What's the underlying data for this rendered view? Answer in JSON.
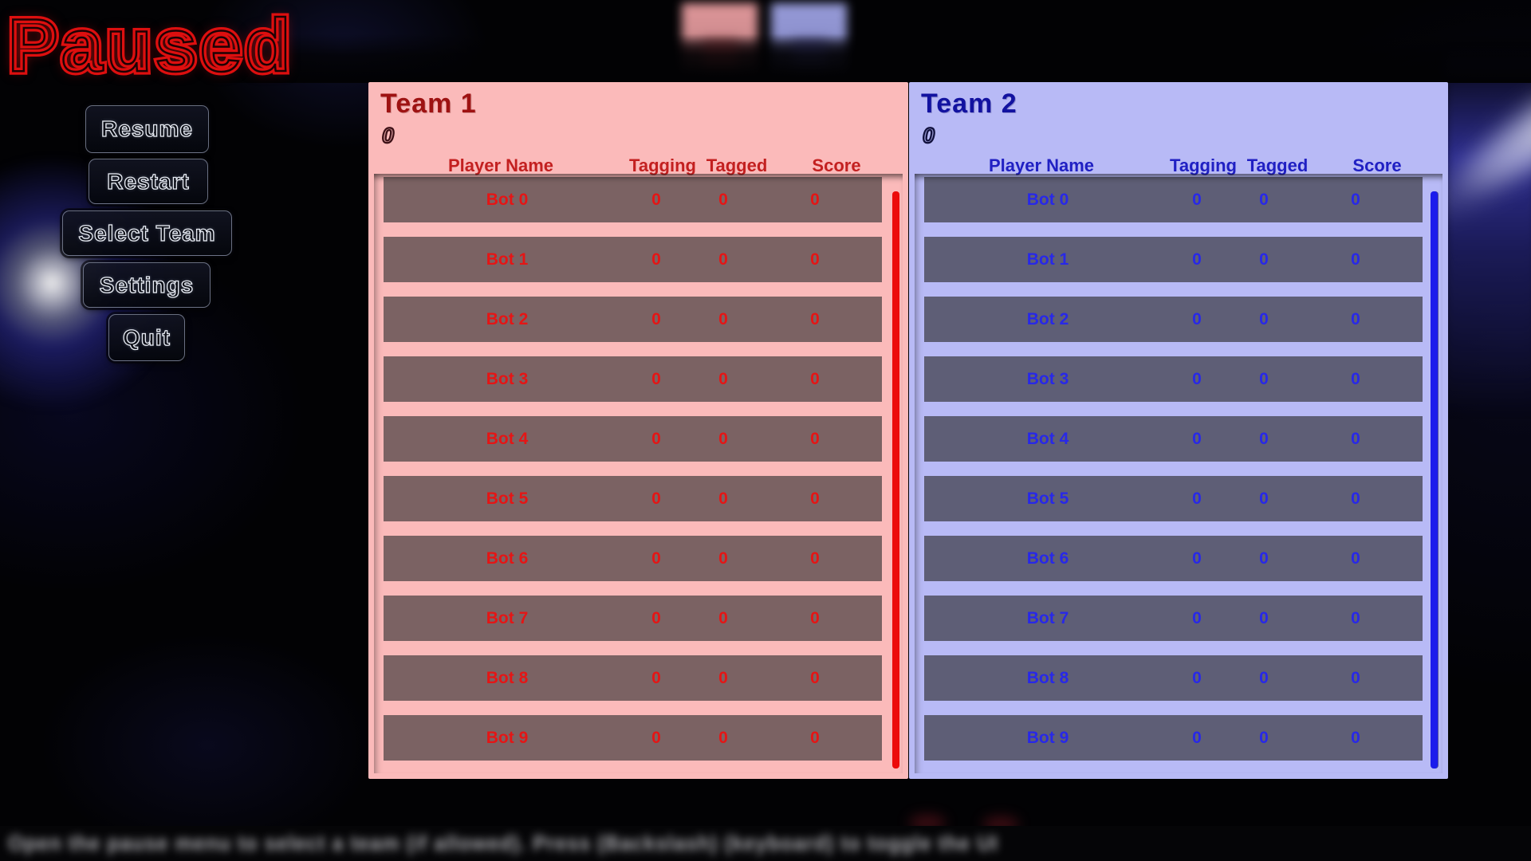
{
  "pause_title": "Paused",
  "menu": {
    "buttons": [
      {
        "id": "resume",
        "label": "Resume"
      },
      {
        "id": "restart",
        "label": "Restart"
      },
      {
        "id": "select_team",
        "label": "Select Team"
      },
      {
        "id": "settings",
        "label": "Settings"
      },
      {
        "id": "quit",
        "label": "Quit"
      }
    ]
  },
  "teams": [
    {
      "name": "Team 1",
      "score": "0",
      "columns": {
        "player": "Player Name",
        "tagging": "Tagging",
        "tagged": "Tagged",
        "score": "Score"
      },
      "players": [
        {
          "name": "Bot 0",
          "tagging": "0",
          "tagged": "0",
          "score": "0"
        },
        {
          "name": "Bot 1",
          "tagging": "0",
          "tagged": "0",
          "score": "0"
        },
        {
          "name": "Bot 2",
          "tagging": "0",
          "tagged": "0",
          "score": "0"
        },
        {
          "name": "Bot 3",
          "tagging": "0",
          "tagged": "0",
          "score": "0"
        },
        {
          "name": "Bot 4",
          "tagging": "0",
          "tagged": "0",
          "score": "0"
        },
        {
          "name": "Bot 5",
          "tagging": "0",
          "tagged": "0",
          "score": "0"
        },
        {
          "name": "Bot 6",
          "tagging": "0",
          "tagged": "0",
          "score": "0"
        },
        {
          "name": "Bot 7",
          "tagging": "0",
          "tagged": "0",
          "score": "0"
        },
        {
          "name": "Bot 8",
          "tagging": "0",
          "tagged": "0",
          "score": "0"
        },
        {
          "name": "Bot 9",
          "tagging": "0",
          "tagged": "0",
          "score": "0"
        }
      ]
    },
    {
      "name": "Team 2",
      "score": "0",
      "columns": {
        "player": "Player Name",
        "tagging": "Tagging",
        "tagged": "Tagged",
        "score": "Score"
      },
      "players": [
        {
          "name": "Bot 0",
          "tagging": "0",
          "tagged": "0",
          "score": "0"
        },
        {
          "name": "Bot 1",
          "tagging": "0",
          "tagged": "0",
          "score": "0"
        },
        {
          "name": "Bot 2",
          "tagging": "0",
          "tagged": "0",
          "score": "0"
        },
        {
          "name": "Bot 3",
          "tagging": "0",
          "tagged": "0",
          "score": "0"
        },
        {
          "name": "Bot 4",
          "tagging": "0",
          "tagged": "0",
          "score": "0"
        },
        {
          "name": "Bot 5",
          "tagging": "0",
          "tagged": "0",
          "score": "0"
        },
        {
          "name": "Bot 6",
          "tagging": "0",
          "tagged": "0",
          "score": "0"
        },
        {
          "name": "Bot 7",
          "tagging": "0",
          "tagged": "0",
          "score": "0"
        },
        {
          "name": "Bot 8",
          "tagging": "0",
          "tagged": "0",
          "score": "0"
        },
        {
          "name": "Bot 9",
          "tagging": "0",
          "tagged": "0",
          "score": "0"
        }
      ]
    }
  ],
  "bottom_hint": "Open the pause menu to select a team (if allowed). Press (Backslash) (keyboard) to toggle the UI",
  "colors": {
    "paused_red": "#dd0f0f",
    "team1_panel": "#fbbaba",
    "team1_row": "#7b6263",
    "team1_text": "#e51515",
    "team1_scrollbar": "#ec0b0b",
    "team2_panel": "#b8baf6",
    "team2_row": "#5e5e76",
    "team2_text": "#2828e8",
    "team2_scrollbar": "#1b1bec"
  }
}
